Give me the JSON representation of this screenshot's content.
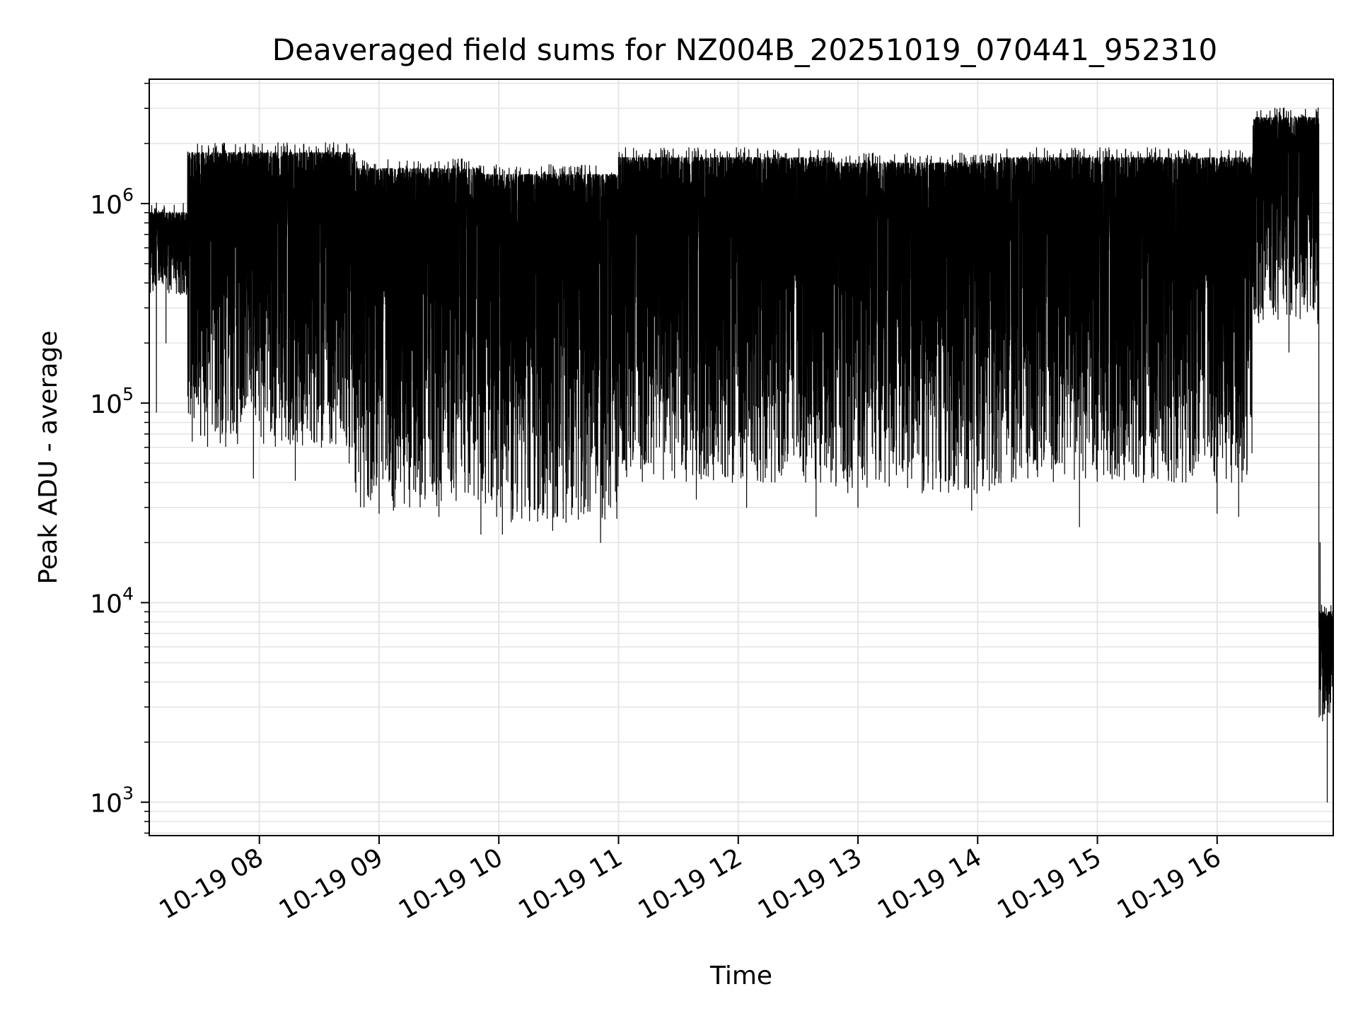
{
  "chart_data": {
    "type": "line",
    "title": "Deaveraged field sums for NZ004B_20251019_070441_952310",
    "xlabel": "Time",
    "ylabel": "Peak ADU - average",
    "yscale": "log",
    "x_range_hours": [
      7.08,
      16.97
    ],
    "ylim": [
      680,
      4200000
    ],
    "x_ticks": [
      {
        "hour": 8,
        "label": "10-19 08"
      },
      {
        "hour": 9,
        "label": "10-19 09"
      },
      {
        "hour": 10,
        "label": "10-19 10"
      },
      {
        "hour": 11,
        "label": "10-19 11"
      },
      {
        "hour": 12,
        "label": "10-19 12"
      },
      {
        "hour": 13,
        "label": "10-19 13"
      },
      {
        "hour": 14,
        "label": "10-19 14"
      },
      {
        "hour": 15,
        "label": "10-19 15"
      },
      {
        "hour": 16,
        "label": "10-19 16"
      }
    ],
    "y_ticks": [
      {
        "value": 1000,
        "base": "10",
        "exp": "3"
      },
      {
        "value": 10000,
        "base": "10",
        "exp": "4"
      },
      {
        "value": 100000,
        "base": "10",
        "exp": "5"
      },
      {
        "value": 1000000,
        "base": "10",
        "exp": "6"
      }
    ],
    "grid": true,
    "line_color": "#000000",
    "grid_color": "#e6e6e6",
    "series": [
      {
        "name": "Peak ADU - average",
        "segments": [
          {
            "t0": 7.08,
            "t1": 7.4,
            "low": 350000,
            "high": 900000,
            "dips": [
              [
                7.14,
                90000
              ],
              [
                7.22,
                200000
              ]
            ]
          },
          {
            "t0": 7.4,
            "t1": 8.8,
            "low": 60000,
            "high": 1800000,
            "dips": [
              [
                7.95,
                42000
              ],
              [
                8.3,
                41000
              ],
              [
                8.75,
                50000
              ]
            ]
          },
          {
            "t0": 8.8,
            "t1": 9.85,
            "low": 30000,
            "high": 1500000,
            "dips": [
              [
                9.0,
                28000
              ],
              [
                9.12,
                29000
              ],
              [
                9.5,
                27000
              ]
            ]
          },
          {
            "t0": 9.85,
            "t1": 11.0,
            "low": 25000,
            "high": 1400000,
            "dips": [
              [
                9.85,
                22000
              ],
              [
                10.03,
                22000
              ],
              [
                10.45,
                23000
              ],
              [
                10.85,
                20000
              ]
            ]
          },
          {
            "t0": 11.0,
            "t1": 12.8,
            "low": 40000,
            "high": 1700000,
            "dips": [
              [
                11.65,
                33000
              ],
              [
                12.07,
                30000
              ],
              [
                12.65,
                27000
              ]
            ]
          },
          {
            "t0": 12.8,
            "t1": 14.2,
            "low": 35000,
            "high": 1600000,
            "dips": [
              [
                13.0,
                30000
              ],
              [
                13.95,
                29000
              ]
            ]
          },
          {
            "t0": 14.2,
            "t1": 16.3,
            "low": 40000,
            "high": 1700000,
            "dips": [
              [
                14.85,
                24000
              ],
              [
                16.0,
                28000
              ],
              [
                16.18,
                27000
              ]
            ]
          },
          {
            "t0": 16.3,
            "t1": 16.85,
            "low": 250000,
            "high": 2700000,
            "dips": [
              [
                16.6,
                180000
              ]
            ]
          },
          {
            "t0": 16.85,
            "t1": 16.97,
            "low": 2400,
            "high": 9000,
            "dips": [
              [
                16.92,
                1000
              ]
            ]
          }
        ]
      }
    ]
  }
}
